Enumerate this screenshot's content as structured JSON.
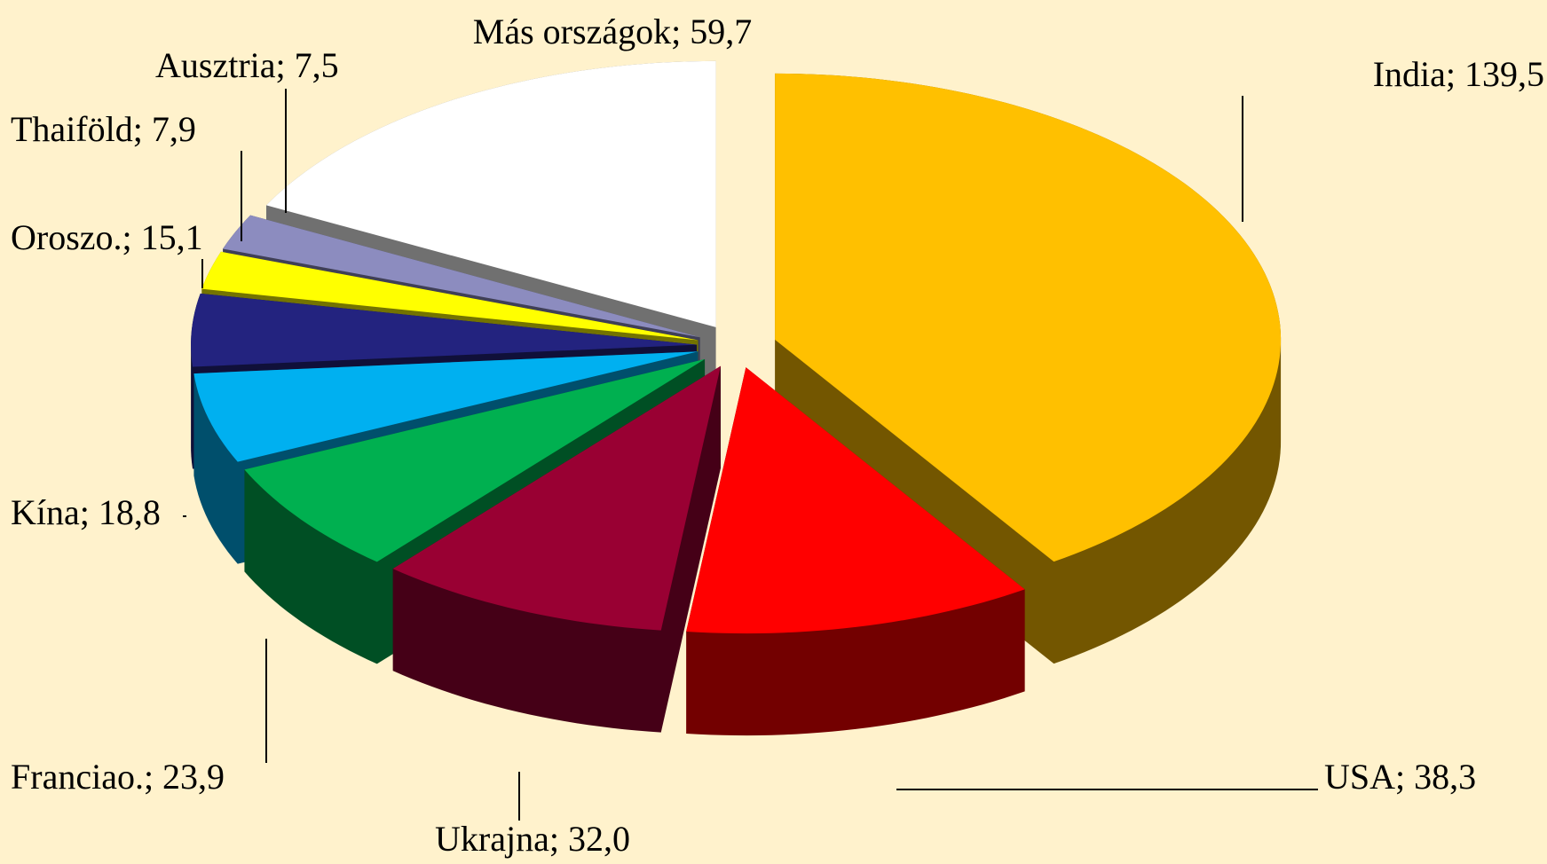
{
  "chart_data": {
    "type": "pie",
    "values": [
      139.5,
      38.3,
      32.0,
      23.9,
      18.8,
      15.1,
      7.9,
      7.5,
      59.7
    ],
    "value_labels": [
      "India; 139,5",
      "USA; 38,3",
      "Ukrajna; 32,0",
      "Franciao.; 23,9",
      "Kína; 18,8",
      "Oroszo.; 15,1",
      "Thaiföld; 7,9",
      "Ausztria; 7,5",
      "Más országok; 59,7"
    ],
    "colors": [
      "#ffc000",
      "#ff0000",
      "#990033",
      "#00b050",
      "#00b0f0",
      "#23237f",
      "#ffff00",
      "#8c8cbf",
      "#ffffff"
    ]
  }
}
